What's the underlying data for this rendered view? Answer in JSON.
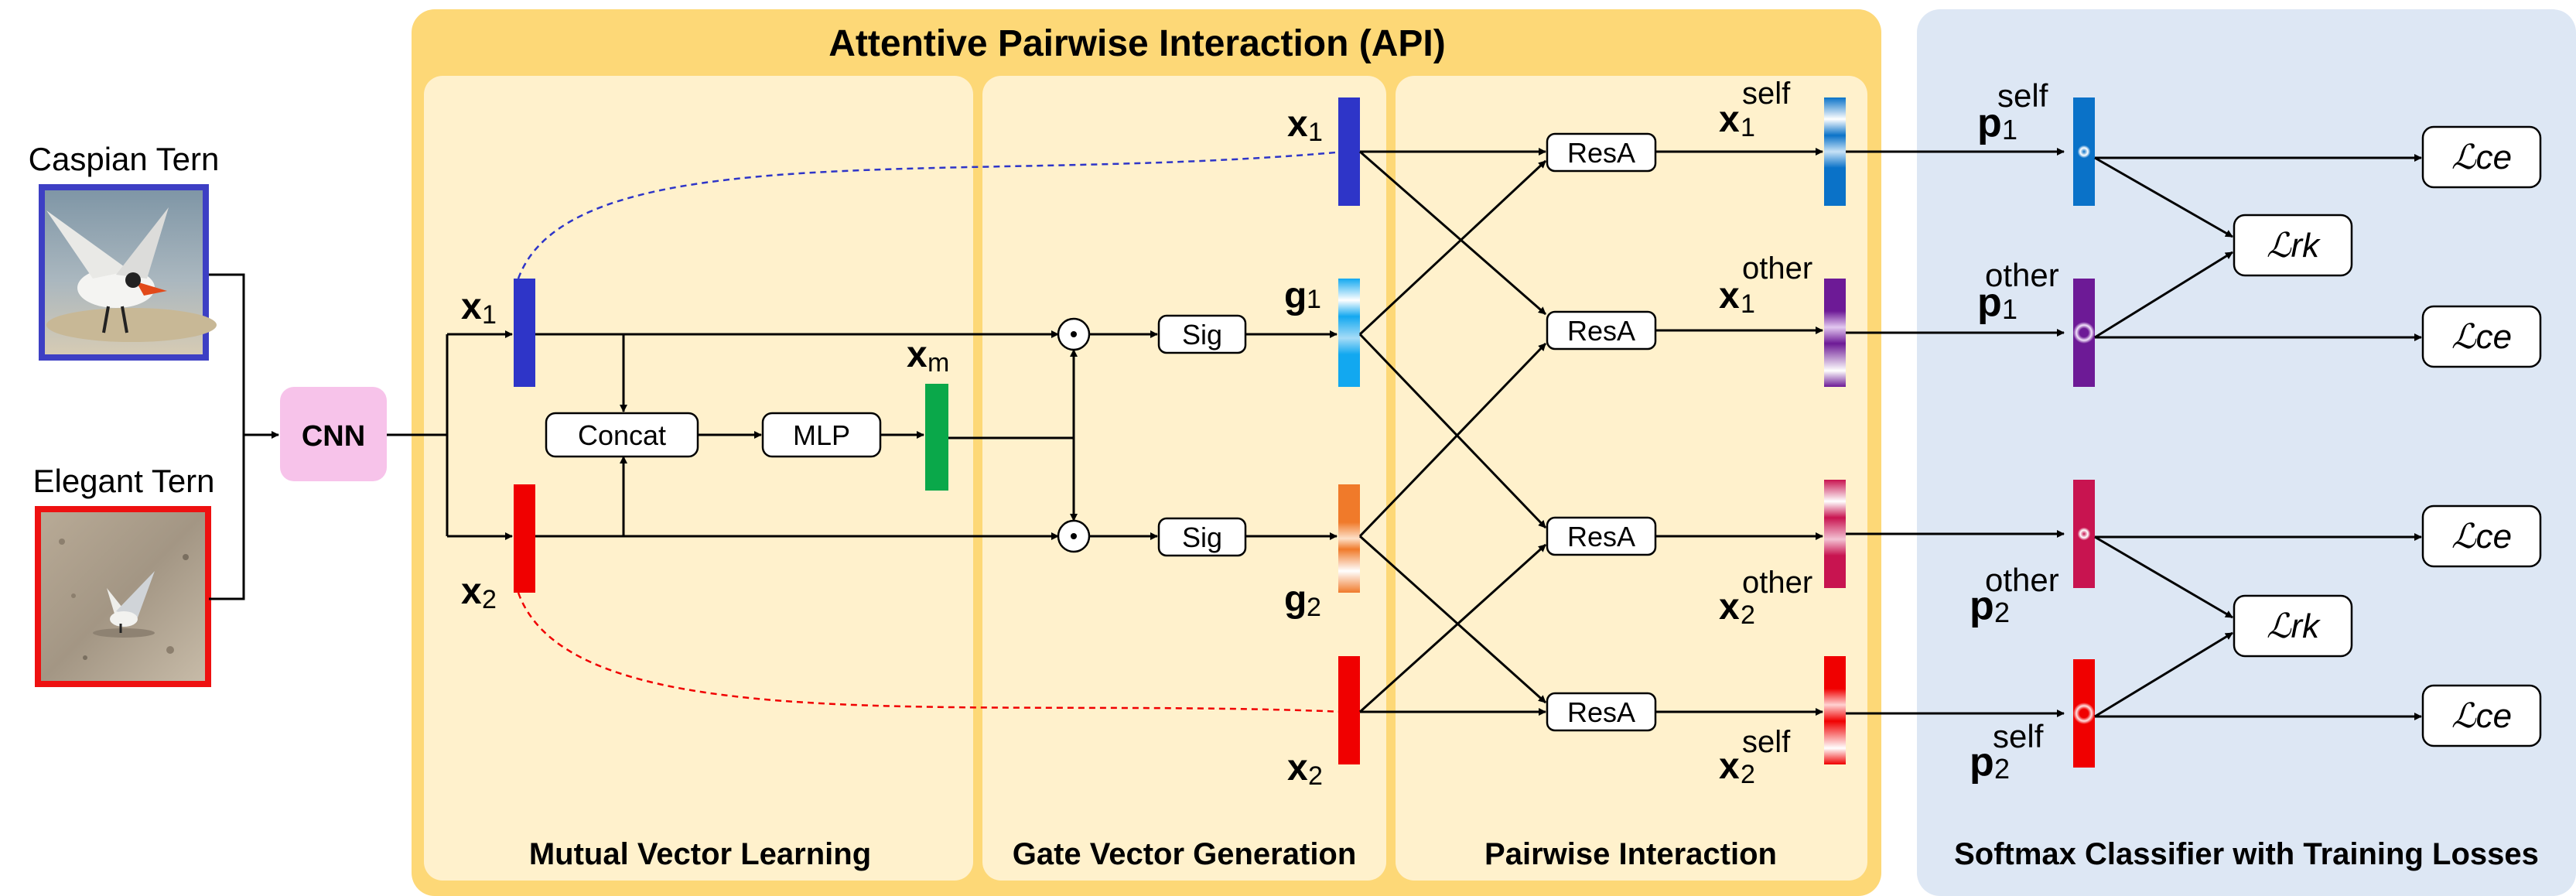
{
  "main_title": "Attentive Pairwise Interaction (API)",
  "inputs": {
    "caspian_label": "Caspian Tern",
    "elegant_label": "Elegant Tern"
  },
  "cnn_label": "CNN",
  "sections": {
    "mutual": "Mutual Vector Learning",
    "gate": "Gate Vector Generation",
    "pairwise": "Pairwise Interaction",
    "classifier": "Softmax Classifier with Training Losses"
  },
  "blocks": {
    "concat": "Concat",
    "mlp": "MLP",
    "sig": "Sig",
    "resa": "ResA",
    "dot": "⊙"
  },
  "vectors": {
    "x": "x",
    "g": "g",
    "p": "p",
    "sub1": "1",
    "sub2": "2",
    "subm": "m",
    "self": "self",
    "other": "other"
  },
  "losses": {
    "ce": "ℒce",
    "rk": "ℒrk"
  },
  "colors": {
    "api_outer": "#fdd877",
    "api_inner": "#fff1cc",
    "classifier_bg": "#dde7f4",
    "cnn": "#f7c3ea",
    "x1": "#2e35c8",
    "x2": "#f00000",
    "xm": "#0aa84a",
    "g1": "#12a8f0",
    "g2": "#f07a2a",
    "other1": "#6d1a96",
    "other2": "#c81450",
    "self1": "#0a72c8",
    "self2": "#f00000"
  }
}
